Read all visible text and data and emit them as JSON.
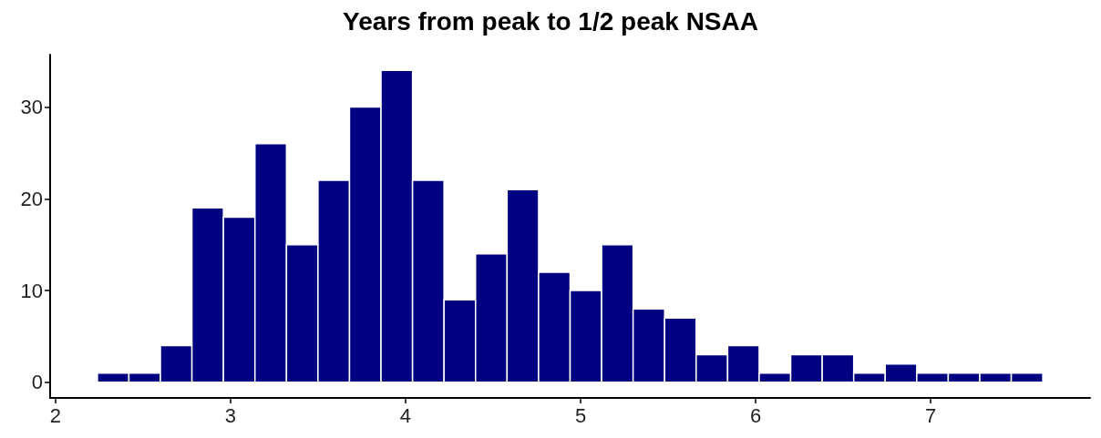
{
  "chart_data": {
    "type": "histogram",
    "title": "Years from peak to 1/2 peak NSAA",
    "bins": [
      2.24,
      2.42,
      2.6,
      2.78,
      2.96,
      3.14,
      3.32,
      3.5,
      3.68,
      3.86,
      4.04,
      4.22,
      4.4,
      4.58,
      4.76,
      4.94,
      5.12,
      5.3,
      5.48,
      5.66,
      5.84,
      6.02,
      6.2,
      6.38,
      6.56,
      6.74,
      6.92,
      7.1,
      7.28,
      7.46,
      7.64
    ],
    "values": [
      1,
      1,
      4,
      19,
      18,
      26,
      15,
      22,
      30,
      34,
      22,
      9,
      14,
      21,
      12,
      10,
      15,
      8,
      7,
      3,
      4,
      1,
      3,
      3,
      1,
      2,
      1,
      1,
      1,
      1
    ],
    "color": "#000080",
    "xlim": [
      1.97,
      7.91
    ],
    "xticks": [
      2,
      3,
      4,
      5,
      6,
      7
    ],
    "ylim": [
      -1.7,
      35.7
    ],
    "yticks": [
      0,
      10,
      20,
      30
    ],
    "grid": false
  }
}
